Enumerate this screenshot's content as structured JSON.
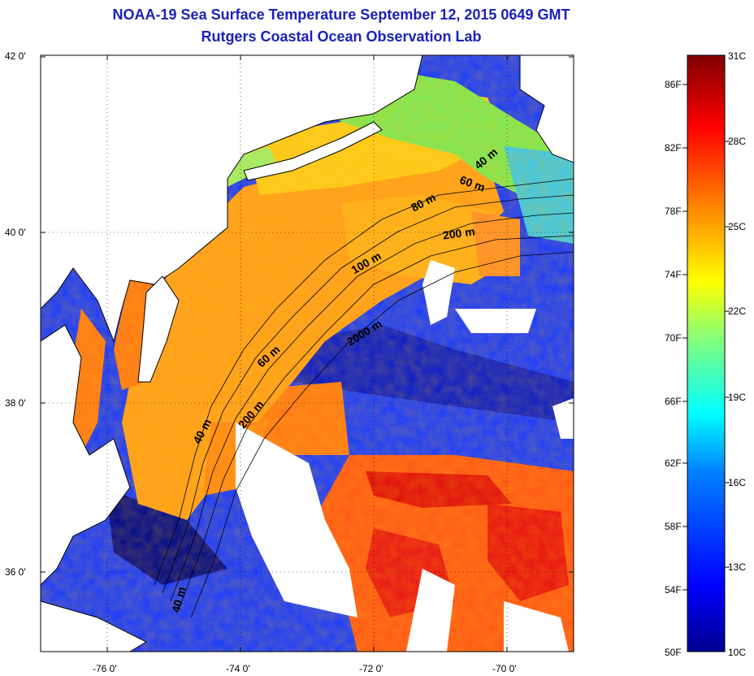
{
  "title_line1": "NOAA-19 Sea Surface Temperature September 12, 2015 0649 GMT",
  "title_line2": "Rutgers Coastal Ocean Observation Lab",
  "lat_ticks": [
    "42 0'",
    "40 0'",
    "38 0'",
    "36 0'"
  ],
  "lon_ticks": [
    "-76 0'",
    "-74 0'",
    "-72 0'",
    "-70 0'"
  ],
  "contour_labels": [
    "40 m",
    "60 m",
    "80 m",
    "200 m",
    "100 m",
    "2000 m",
    "60 m",
    "200 m",
    "40 m",
    "40 m"
  ],
  "colorbar": {
    "fahrenheit": [
      "86F",
      "82F",
      "78F",
      "74F",
      "70F",
      "66F",
      "62F",
      "58F",
      "54F",
      "50F"
    ],
    "celsius": [
      "31C",
      "28C",
      "25C",
      "22C",
      "19C",
      "16C",
      "13C",
      "10C"
    ],
    "colors": [
      "#7f0000",
      "#ff0000",
      "#ff8000",
      "#ffff00",
      "#80ff80",
      "#00ffff",
      "#0080ff",
      "#0000ff",
      "#00008f"
    ]
  },
  "colors": {
    "title": "#1a22b8",
    "land": "#ffffff",
    "deep_water": "#1a3cff",
    "shelf_water": "#ffa020"
  }
}
